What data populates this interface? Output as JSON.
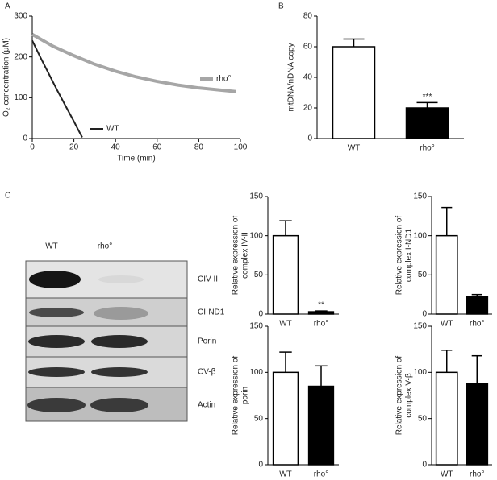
{
  "panel_labels": [
    "A",
    "B",
    "C"
  ],
  "blot": {
    "columns": [
      "WT",
      "rho°"
    ],
    "rows": [
      "CIV-II",
      "CI-ND1",
      "Porin",
      "CV-β",
      "Actin"
    ]
  },
  "chart_data": [
    {
      "type": "line",
      "xlabel": "Time (min)",
      "ylabel": "O₂ concentration (μM)",
      "xlim": [
        0,
        100
      ],
      "xticks": [
        0,
        20,
        40,
        60,
        80,
        100
      ],
      "ylim": [
        0,
        300
      ],
      "yticks": [
        0,
        100,
        200,
        300
      ],
      "series": [
        {
          "name": "rho°",
          "color": "#a6a6a6",
          "x": [
            0,
            10,
            20,
            30,
            40,
            50,
            60,
            70,
            80,
            90,
            98
          ],
          "values": [
            255,
            226,
            203,
            182,
            165,
            151,
            140,
            131,
            124,
            119,
            115
          ]
        },
        {
          "name": "WT",
          "color": "#222222",
          "x": [
            0,
            2,
            4,
            6,
            8,
            10,
            12,
            14,
            16,
            18,
            20,
            22,
            24
          ],
          "values": [
            240,
            219,
            198,
            178,
            158,
            138,
            118,
            99,
            80,
            61,
            42,
            22,
            3
          ]
        }
      ]
    },
    {
      "type": "bar",
      "ylabel": "mtDNA/nDNA copy",
      "categories": [
        "WT",
        "rho°"
      ],
      "values": [
        60,
        20
      ],
      "errors": [
        5,
        3.5
      ],
      "colors": [
        "#ffffff",
        "#000000"
      ],
      "ylim": [
        0,
        80
      ],
      "yticks": [
        0,
        20,
        40,
        60,
        80
      ],
      "annotation": "***"
    },
    {
      "type": "bar",
      "ylabel": [
        "Relative expression of",
        "complex IV-II"
      ],
      "categories": [
        "WT",
        "rho°"
      ],
      "values": [
        100,
        3
      ],
      "errors": [
        19,
        1
      ],
      "colors": [
        "#ffffff",
        "#000000"
      ],
      "ylim": [
        0,
        150
      ],
      "yticks": [
        0,
        50,
        100,
        150
      ],
      "annotation": "**"
    },
    {
      "type": "bar",
      "ylabel": [
        "Relative expression of",
        "complex I-ND1"
      ],
      "categories": [
        "WT",
        "rho°"
      ],
      "values": [
        100,
        22
      ],
      "errors": [
        36,
        3
      ],
      "colors": [
        "#ffffff",
        "#000000"
      ],
      "ylim": [
        0,
        150
      ],
      "yticks": [
        0,
        50,
        100,
        150
      ]
    },
    {
      "type": "bar",
      "ylabel": [
        "Relative expression of",
        "porin"
      ],
      "categories": [
        "WT",
        "rho°"
      ],
      "values": [
        100,
        85
      ],
      "errors": [
        22,
        22
      ],
      "colors": [
        "#ffffff",
        "#000000"
      ],
      "ylim": [
        0,
        150
      ],
      "yticks": [
        0,
        50,
        100,
        150
      ]
    },
    {
      "type": "bar",
      "ylabel": [
        "Relative expression of",
        "complex V-β"
      ],
      "categories": [
        "WT",
        "rho°"
      ],
      "values": [
        100,
        88
      ],
      "errors": [
        24,
        30
      ],
      "colors": [
        "#ffffff",
        "#000000"
      ],
      "ylim": [
        0,
        150
      ],
      "yticks": [
        0,
        50,
        100,
        150
      ]
    }
  ]
}
